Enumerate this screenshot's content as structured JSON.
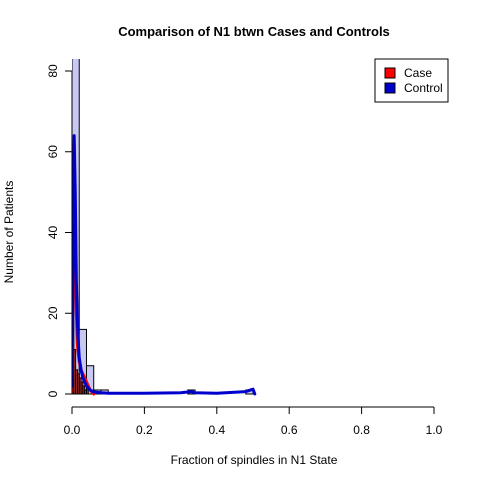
{
  "chart_data": {
    "type": "histogram",
    "title": "Comparison of N1 btwn Cases and Controls",
    "xlabel": "Fraction of spindles in N1 State",
    "ylabel": "Number of Patients",
    "xlim": [
      0,
      1
    ],
    "ylim": [
      0,
      80
    ],
    "x_ticks": [
      {
        "value": 0,
        "label": "0.0"
      },
      {
        "value": 0.2,
        "label": "0.2"
      },
      {
        "value": 0.4,
        "label": "0.4"
      },
      {
        "value": 0.6,
        "label": "0.6"
      },
      {
        "value": 0.8,
        "label": "0.8"
      },
      {
        "value": 1.0,
        "label": "1.0"
      }
    ],
    "y_ticks": [
      {
        "value": 0,
        "label": "0"
      },
      {
        "value": 20,
        "label": "20"
      },
      {
        "value": 40,
        "label": "40"
      },
      {
        "value": 60,
        "label": "60"
      },
      {
        "value": 80,
        "label": "80"
      }
    ],
    "legend": {
      "placement": "top-right",
      "entries": [
        {
          "label": "Case",
          "color": "#ff0000"
        },
        {
          "label": "Control",
          "color": "#0000cc"
        }
      ]
    },
    "histograms": [
      {
        "fill": "#c8c8f5",
        "bins": [
          {
            "x0": 0.0,
            "x1": 0.02,
            "count": 95
          },
          {
            "x0": 0.02,
            "x1": 0.04,
            "count": 16
          },
          {
            "x0": 0.04,
            "x1": 0.06,
            "count": 7
          },
          {
            "x0": 0.06,
            "x1": 0.08,
            "count": 1
          },
          {
            "x0": 0.08,
            "x1": 0.1,
            "count": 1
          },
          {
            "x0": 0.32,
            "x1": 0.34,
            "count": 1
          },
          {
            "x0": 0.48,
            "x1": 0.5,
            "count": 1
          }
        ]
      },
      {
        "fill": "#c83232",
        "bins": [
          {
            "x0": 0.0,
            "x1": 0.005,
            "count": 40
          },
          {
            "x0": 0.005,
            "x1": 0.01,
            "count": 11
          },
          {
            "x0": 0.01,
            "x1": 0.015,
            "count": 6
          },
          {
            "x0": 0.015,
            "x1": 0.02,
            "count": 5
          },
          {
            "x0": 0.02,
            "x1": 0.025,
            "count": 4
          },
          {
            "x0": 0.025,
            "x1": 0.03,
            "count": 3
          },
          {
            "x0": 0.03,
            "x1": 0.035,
            "count": 2
          },
          {
            "x0": 0.035,
            "x1": 0.04,
            "count": 1
          },
          {
            "x0": 0.04,
            "x1": 0.045,
            "count": 1
          }
        ]
      }
    ],
    "series": [
      {
        "name": "Case",
        "color": "#ff0000",
        "x": [
          0.0,
          0.002,
          0.004,
          0.006,
          0.008,
          0.01,
          0.012,
          0.015,
          0.02,
          0.025,
          0.03,
          0.035,
          0.04,
          0.045,
          0.05,
          0.055,
          0.06
        ],
        "y": [
          1,
          20,
          55,
          62,
          48,
          30,
          20,
          12,
          8,
          6,
          5,
          4,
          3,
          2,
          1,
          0.5,
          0
        ]
      },
      {
        "name": "Control",
        "color": "#0000cc",
        "x": [
          0.0,
          0.003,
          0.006,
          0.009,
          0.012,
          0.016,
          0.02,
          0.025,
          0.03,
          0.04,
          0.05,
          0.06,
          0.08,
          0.1,
          0.15,
          0.2,
          0.3,
          0.33,
          0.34,
          0.4,
          0.48,
          0.5,
          0.505
        ],
        "y": [
          2,
          30,
          64,
          50,
          28,
          15,
          9,
          6,
          4,
          2,
          1,
          0.5,
          0.3,
          0.2,
          0.2,
          0.2,
          0.3,
          0.6,
          0.3,
          0.2,
          0.6,
          1.2,
          0
        ]
      }
    ]
  }
}
